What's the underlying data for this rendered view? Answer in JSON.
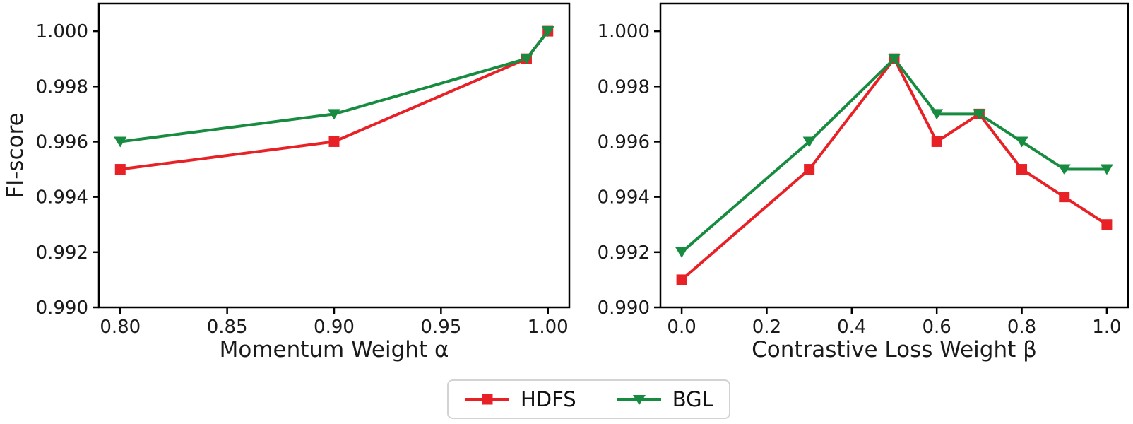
{
  "figure": {
    "background": "#ffffff",
    "ylabel": "FI-score"
  },
  "colors": {
    "hdfs_red": "#e82127",
    "bgl_green": "#178c40",
    "axis": "#000000",
    "text": "#1a1a1a",
    "legend_border": "#d3d3d3"
  },
  "legend": {
    "position": "bottom-center",
    "items": [
      {
        "label": "HDFS",
        "marker": "square",
        "color": "#e82127"
      },
      {
        "label": "BGL",
        "marker": "triangle-down",
        "color": "#178c40"
      }
    ]
  },
  "chart_data": [
    {
      "type": "line",
      "title": "",
      "xlabel": "Momentum Weight α",
      "ylabel": "FI-score",
      "xlim": [
        0.79,
        1.01
      ],
      "ylim": [
        0.99,
        1.001
      ],
      "grid": false,
      "xticks": [
        0.8,
        0.85,
        0.9,
        0.95,
        1.0
      ],
      "xtick_labels": [
        "0.80",
        "0.85",
        "0.90",
        "0.95",
        "1.00"
      ],
      "yticks": [
        0.99,
        0.992,
        0.994,
        0.996,
        0.998,
        1.0
      ],
      "ytick_labels": [
        "0.990",
        "0.992",
        "0.994",
        "0.996",
        "0.998",
        "1.000"
      ],
      "series": [
        {
          "name": "HDFS",
          "marker": "square",
          "color": "#e82127",
          "x": [
            0.8,
            0.9,
            0.99,
            1.0
          ],
          "y": [
            0.995,
            0.996,
            0.999,
            1.0
          ]
        },
        {
          "name": "BGL",
          "marker": "triangle-down",
          "color": "#178c40",
          "x": [
            0.8,
            0.9,
            0.99,
            1.0
          ],
          "y": [
            0.996,
            0.997,
            0.999,
            1.0
          ]
        }
      ]
    },
    {
      "type": "line",
      "title": "",
      "xlabel": "Contrastive Loss Weight β",
      "ylabel": "",
      "xlim": [
        -0.05,
        1.05
      ],
      "ylim": [
        0.99,
        1.001
      ],
      "grid": false,
      "xticks": [
        0.0,
        0.2,
        0.4,
        0.6,
        0.8,
        1.0
      ],
      "xtick_labels": [
        "0.0",
        "0.2",
        "0.4",
        "0.6",
        "0.8",
        "1.0"
      ],
      "yticks": [
        0.99,
        0.992,
        0.994,
        0.996,
        0.998,
        1.0
      ],
      "ytick_labels": [
        "0.990",
        "0.992",
        "0.994",
        "0.996",
        "0.998",
        "1.000"
      ],
      "series": [
        {
          "name": "HDFS",
          "marker": "square",
          "color": "#e82127",
          "x": [
            0.0,
            0.3,
            0.5,
            0.6,
            0.7,
            0.8,
            0.9,
            1.0
          ],
          "y": [
            0.991,
            0.995,
            0.999,
            0.996,
            0.997,
            0.995,
            0.994,
            0.993
          ]
        },
        {
          "name": "BGL",
          "marker": "triangle-down",
          "color": "#178c40",
          "x": [
            0.0,
            0.3,
            0.5,
            0.6,
            0.7,
            0.8,
            0.9,
            1.0
          ],
          "y": [
            0.992,
            0.996,
            0.999,
            0.997,
            0.997,
            0.996,
            0.995,
            0.995
          ]
        }
      ]
    }
  ]
}
